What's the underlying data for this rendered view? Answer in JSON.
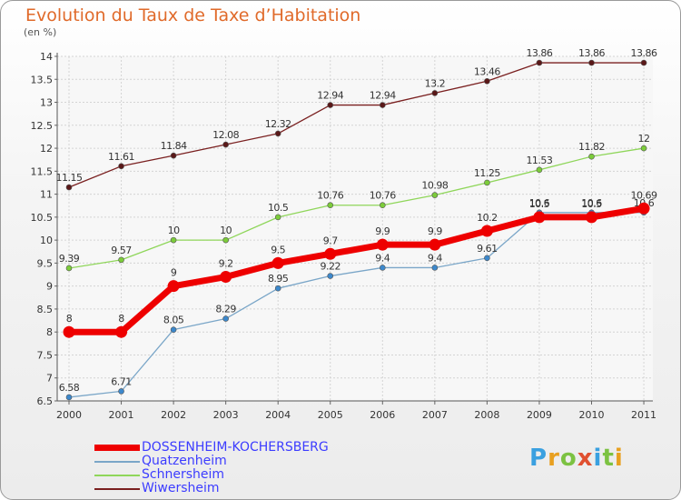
{
  "title": "Evolution du Taux de Taxe d’Habitation",
  "unit_label": "(en %)",
  "logo": {
    "text": "Proxiti",
    "letter_colors": [
      "#3aa0e0",
      "#e8a020",
      "#7cc242",
      "#e05030",
      "#3aa0e0",
      "#7cc242",
      "#e8a020"
    ]
  },
  "chart_data": {
    "type": "line",
    "title": "Evolution du Taux de Taxe d’Habitation",
    "ylabel": "(en %)",
    "xlabel": "",
    "x": [
      "2000",
      "2001",
      "2002",
      "2003",
      "2004",
      "2005",
      "2006",
      "2007",
      "2008",
      "2009",
      "2010",
      "2011"
    ],
    "ylim": [
      6.5,
      14
    ],
    "yticks": [
      "6.5",
      "7",
      "7.5",
      "8",
      "8.5",
      "9",
      "9.5",
      "10",
      "10.5",
      "11",
      "11.5",
      "12",
      "12.5",
      "13",
      "13.5",
      "14"
    ],
    "grid": true,
    "legend_position": "bottom-left",
    "series": [
      {
        "name": "Wiwersheim",
        "color": "#7a2020",
        "values": [
          11.15,
          11.61,
          11.84,
          12.08,
          12.32,
          12.94,
          12.94,
          13.2,
          13.46,
          13.86,
          13.86,
          13.86
        ],
        "labels": [
          "11.15",
          "11.61",
          "11.84",
          "12.08",
          "12.32",
          "12.94",
          "12.94",
          "13.2",
          "13.46",
          "13.86",
          "13.86",
          "13.86"
        ]
      },
      {
        "name": "Schnersheim",
        "color": "#8fd65a",
        "values": [
          9.39,
          9.57,
          10,
          10,
          10.5,
          10.76,
          10.76,
          10.98,
          11.25,
          11.53,
          11.82,
          12
        ],
        "labels": [
          "9.39",
          "9.57",
          "10",
          "10",
          "10.5",
          "10.76",
          "10.76",
          "10.98",
          "11.25",
          "11.53",
          "11.82",
          "12"
        ]
      },
      {
        "name": "Quatzenheim",
        "color": "#7aa6c8",
        "values": [
          6.58,
          6.71,
          8.05,
          8.29,
          8.95,
          9.22,
          9.4,
          9.4,
          9.61,
          10.6,
          10.6,
          10.6
        ],
        "labels": [
          "6.58",
          "6.71",
          "8.05",
          "8.29",
          "8.95",
          "9.22",
          "9.4",
          "9.4",
          "9.61",
          "10.6",
          "10.6",
          "10.6"
        ]
      },
      {
        "name": "DOSSENHEIM-KOCHERSBERG",
        "color": "#ee0000",
        "values": [
          8,
          8,
          9,
          9.2,
          9.5,
          9.7,
          9.9,
          9.9,
          10.2,
          10.5,
          10.5,
          10.69
        ],
        "labels": [
          "8",
          "8",
          "9",
          "9.2",
          "9.5",
          "9.7",
          "9.9",
          "9.9",
          "10.2",
          "10.5",
          "10.5",
          "10.69"
        ]
      }
    ],
    "legend": [
      "DOSSENHEIM-KOCHERSBERG",
      "Quatzenheim",
      "Schnersheim",
      "Wiwersheim"
    ]
  }
}
